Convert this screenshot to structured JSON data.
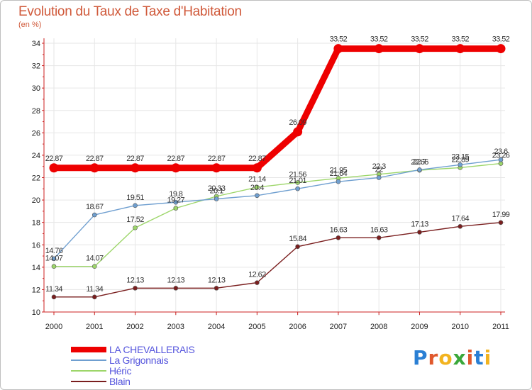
{
  "title": "Evolution du Taux de Taxe d'Habitation",
  "unit_label": "(en %)",
  "brand": {
    "text": "Proxiti",
    "letter_colors": [
      "#2a7fd4",
      "#e0582c",
      "#f2b31f",
      "#3aa83a",
      "#e0582c",
      "#2a7fd4",
      "#f2b31f"
    ]
  },
  "colors": {
    "axis": "#cc2222",
    "grid": "#e6e6e6",
    "frame": "#bfbfbf",
    "title": "#d0593a",
    "legend_text": "#5555dd"
  },
  "chart_data": {
    "type": "line",
    "title": "Evolution du Taux de Taxe d'Habitation",
    "ylabel": "(en %)",
    "xlabel": "",
    "x": [
      "2000",
      "2001",
      "2002",
      "2003",
      "2004",
      "2005",
      "2006",
      "2007",
      "2008",
      "2009",
      "2010",
      "2011"
    ],
    "ylim": [
      10,
      34
    ],
    "yticks": [
      "10",
      "12",
      "14",
      "16",
      "18",
      "20",
      "22",
      "24",
      "26",
      "28",
      "30",
      "32",
      "34"
    ],
    "grid": true,
    "legend_position": "bottom-left",
    "series": [
      {
        "name": "LA CHEVALLERAIS",
        "color": "#ee0000",
        "values": [
          22.87,
          22.87,
          22.87,
          22.87,
          22.87,
          22.87,
          26.09,
          33.52,
          33.52,
          33.52,
          33.52,
          33.52
        ],
        "labels": [
          "22.87",
          "22.87",
          "22.87",
          "22.87",
          "22.87",
          "22.87",
          "26.09",
          "33.52",
          "33.52",
          "33.52",
          "33.52",
          "33.52"
        ]
      },
      {
        "name": "La Grigonnais",
        "color": "#6f9fd0",
        "values": [
          14.76,
          18.67,
          19.51,
          19.8,
          20.1,
          20.4,
          21.01,
          21.64,
          22.0,
          22.7,
          23.15,
          23.6
        ],
        "labels": [
          "14.76",
          "18.67",
          "19.51",
          "19.8",
          "20.1",
          "20.4",
          "21.01",
          "21.64",
          "22",
          "22.7",
          "23.15",
          "23.6"
        ]
      },
      {
        "name": "Héric",
        "color": "#9dd66a",
        "values": [
          14.07,
          14.07,
          17.52,
          19.27,
          20.33,
          21.14,
          21.56,
          21.95,
          22.3,
          22.66,
          22.89,
          23.26
        ],
        "labels": [
          "14.07",
          "14.07",
          "17.52",
          "19.27",
          "20.33",
          "21.14",
          "21.56",
          "21.95",
          "22.3",
          "22.66",
          "22.89",
          "23.26"
        ]
      },
      {
        "name": "Blain",
        "color": "#7a1e1e",
        "values": [
          11.34,
          11.34,
          12.13,
          12.13,
          12.13,
          12.62,
          15.84,
          16.63,
          16.63,
          17.13,
          17.64,
          17.99
        ],
        "labels": [
          "11.34",
          "11.34",
          "12.13",
          "12.13",
          "12.13",
          "12.62",
          "15.84",
          "16.63",
          "16.63",
          "17.13",
          "17.64",
          "17.99"
        ]
      }
    ]
  }
}
